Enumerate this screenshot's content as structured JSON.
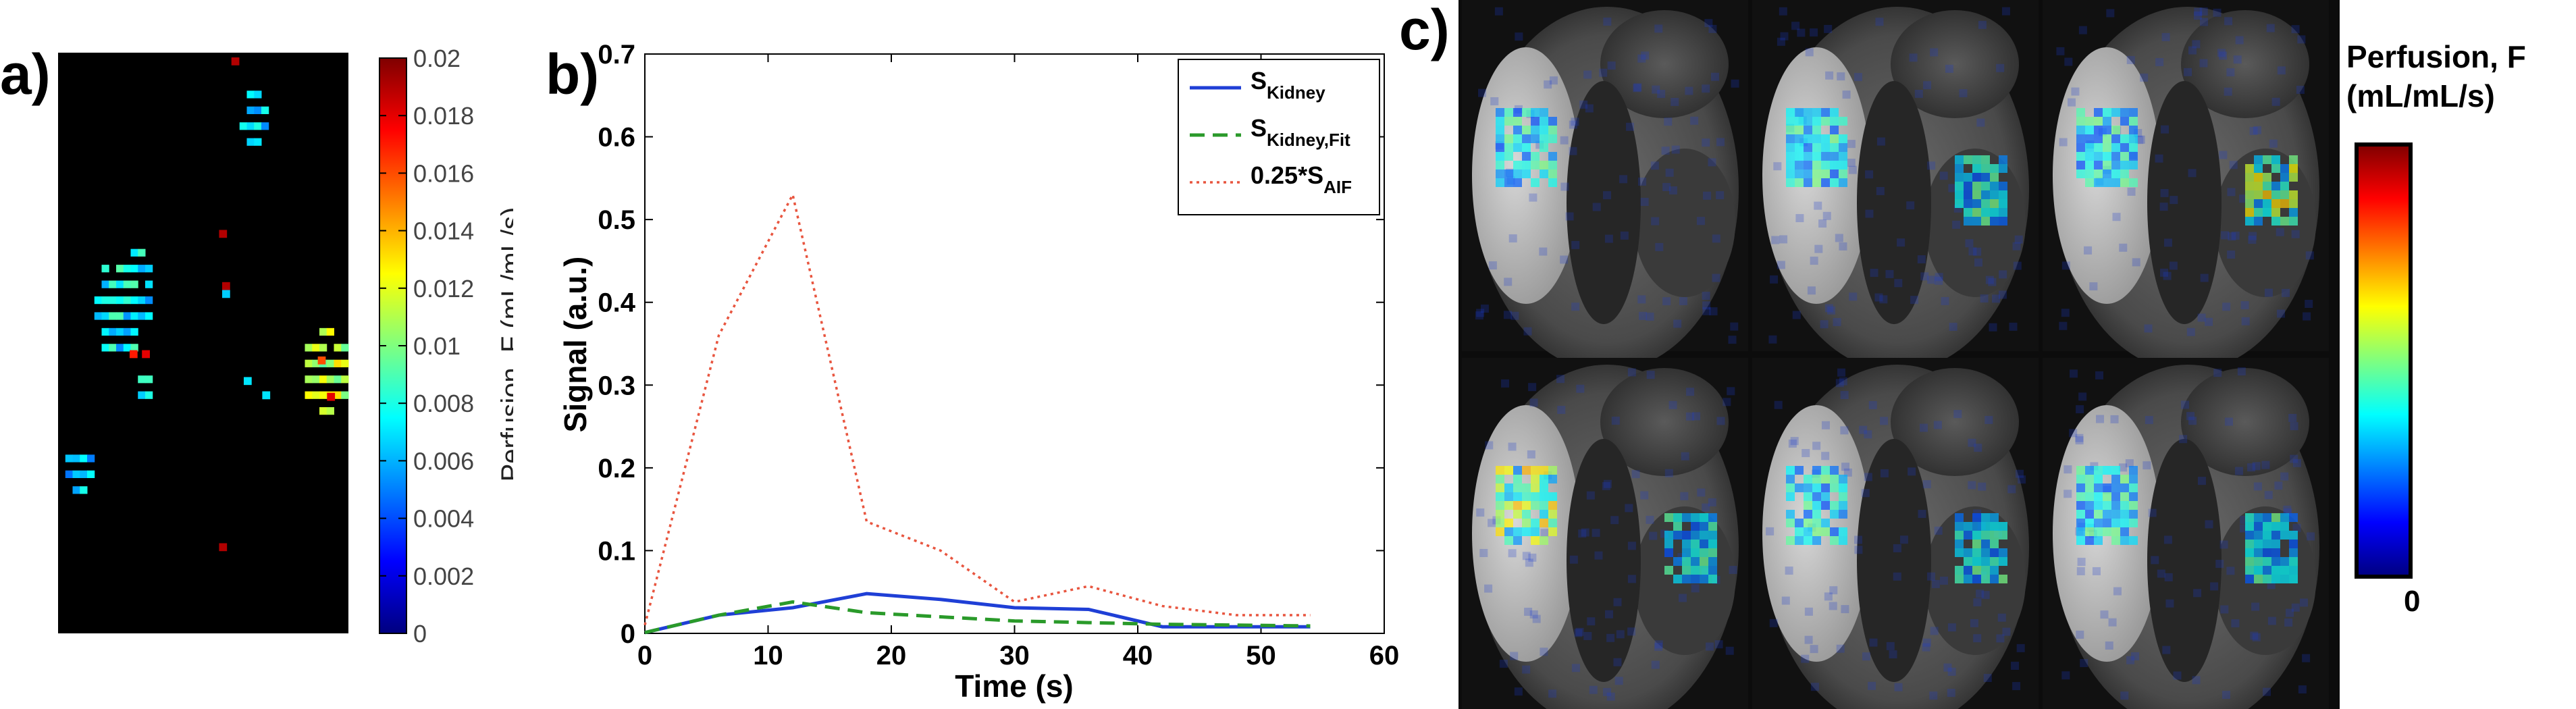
{
  "panels": {
    "a": "a)",
    "b": "b)",
    "c": "c)"
  },
  "colors": {
    "jet_stops": [
      "#00007f",
      "#0000ff",
      "#007fff",
      "#00ffff",
      "#7fff7f",
      "#ffff00",
      "#ff7f00",
      "#ff0000",
      "#7f0000"
    ],
    "kidney_line": "#1f3fd6",
    "fit_line": "#2a9a2a",
    "aif_line": "#e8553f",
    "map_background": "#000000"
  },
  "panel_a": {
    "colorbar_label": "Perfusion, F (mL/mL/s)",
    "colorbar_range": [
      0,
      0.02
    ],
    "colorbar_ticks": [
      "0.02",
      "0.018",
      "0.016",
      "0.014",
      "0.012",
      "0.01",
      "0.008",
      "0.006",
      "0.004",
      "0.002",
      "0"
    ]
  },
  "chart_data": [
    {
      "type": "line",
      "title": "",
      "xlabel": "Time (s)",
      "ylabel": "Signal (a.u.)",
      "xlim": [
        0,
        60
      ],
      "ylim": [
        0,
        0.7
      ],
      "xticks": [
        "0",
        "10",
        "20",
        "30",
        "40",
        "50",
        "60"
      ],
      "yticks": [
        "0",
        "0.1",
        "0.2",
        "0.3",
        "0.4",
        "0.5",
        "0.6",
        "0.7"
      ],
      "series": [
        {
          "name": "S_Kidney",
          "label_main": "S",
          "label_sub": "Kidney",
          "style": "solid",
          "x": [
            0,
            6,
            12,
            18,
            24,
            30,
            36,
            42,
            48,
            54
          ],
          "y": [
            0.001,
            0.022,
            0.031,
            0.048,
            0.041,
            0.031,
            0.029,
            0.008,
            0.008,
            0.008
          ]
        },
        {
          "name": "S_Kidney,Fit",
          "label_main": "S",
          "label_sub": "Kidney,Fit",
          "style": "dashed",
          "x": [
            0,
            6,
            12,
            18,
            24,
            30,
            36,
            42,
            48,
            54
          ],
          "y": [
            0.001,
            0.022,
            0.038,
            0.025,
            0.02,
            0.015,
            0.013,
            0.011,
            0.01,
            0.009
          ]
        },
        {
          "name": "0.25*S_AIF",
          "label_main": "0.25*S",
          "label_sub": "AIF",
          "style": "dotted",
          "x": [
            0,
            6,
            12,
            18,
            24,
            30,
            36,
            42,
            48,
            54
          ],
          "y": [
            0.01,
            0.36,
            0.53,
            0.135,
            0.1,
            0.038,
            0.057,
            0.033,
            0.022,
            0.022
          ]
        }
      ],
      "legend_position": "top-right"
    }
  ],
  "panel_c": {
    "colorbar_title_line1": "Perfusion, F",
    "colorbar_title_line2": "(mL/mL/s)",
    "colorbar_min_label": "0"
  }
}
